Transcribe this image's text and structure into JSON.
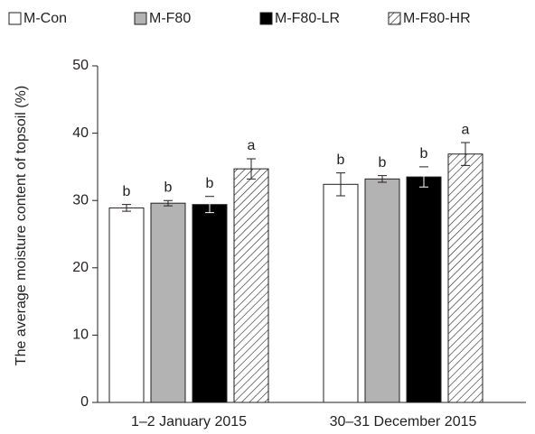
{
  "chart_data": {
    "type": "bar",
    "y_label": "The average moisture content of topsoil (%)",
    "categories": [
      "1–2 January 2015",
      "30–31 December 2015"
    ],
    "series": [
      {
        "name": "M-Con",
        "color": "#ffffff",
        "hatch": false,
        "values": [
          28.9,
          32.4
        ],
        "errors": [
          0.5,
          1.7
        ],
        "labels": [
          "b",
          "b"
        ]
      },
      {
        "name": "M-F80",
        "color": "#b3b3b3",
        "hatch": false,
        "values": [
          29.6,
          33.2
        ],
        "errors": [
          0.4,
          0.5
        ],
        "labels": [
          "b",
          "b"
        ]
      },
      {
        "name": "M-F80-LR",
        "color": "#000000",
        "hatch": false,
        "values": [
          29.4,
          33.5
        ],
        "errors": [
          1.2,
          1.5
        ],
        "labels": [
          "b",
          "b"
        ]
      },
      {
        "name": "M-F80-HR",
        "color": "#ffffff",
        "hatch": true,
        "values": [
          34.7,
          36.9
        ],
        "errors": [
          1.5,
          1.7
        ],
        "labels": [
          "a",
          "a"
        ]
      }
    ],
    "ylim": [
      0,
      50
    ],
    "yticks": [
      0,
      10,
      20,
      30,
      40,
      50
    ]
  }
}
